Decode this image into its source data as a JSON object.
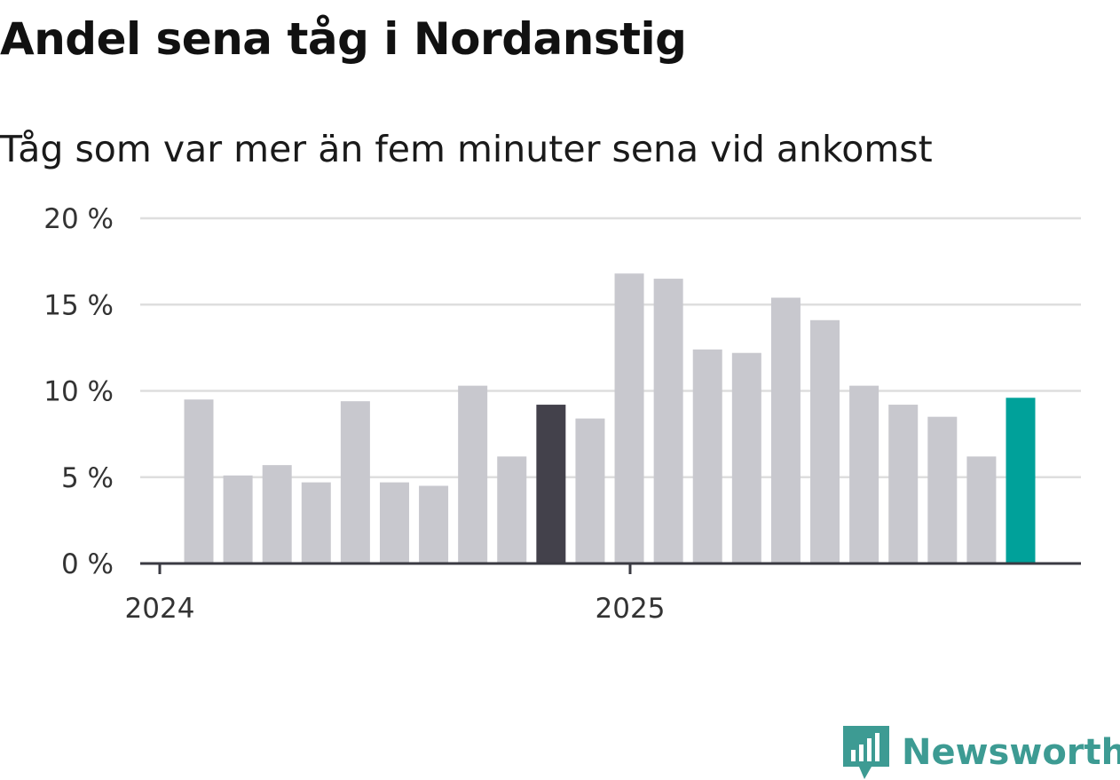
{
  "chart_data": {
    "type": "bar",
    "title": "Andel sena tåg i Nordanstig",
    "subtitle": "Tåg som var mer än fem minuter sena vid ankomst",
    "ylim": [
      0,
      20
    ],
    "yticks": [
      0,
      5,
      10,
      15,
      20
    ],
    "ytick_labels": [
      "0 %",
      "5 %",
      "10 %",
      "15 %",
      "20 %"
    ],
    "xtick_labels": [
      "2024",
      "2025"
    ],
    "grid": true,
    "values": [
      9.5,
      5.1,
      5.7,
      4.7,
      9.4,
      4.7,
      4.5,
      10.3,
      6.2,
      9.2,
      8.4,
      16.8,
      16.5,
      12.4,
      12.2,
      15.4,
      14.1,
      10.3,
      9.2,
      8.5,
      6.2,
      9.6
    ],
    "colors": {
      "default": "#c8c8ce",
      "highlight_dark": "#43414b",
      "highlight_latest": "#00a19a",
      "grid": "#dedede",
      "axis": "#3a3a42"
    },
    "highlights": {
      "9": "highlight_dark",
      "21": "highlight_latest"
    }
  },
  "logo": {
    "text": "Newsworthy",
    "icon": "newsworthy-logo-icon",
    "color": "#3d9b93"
  }
}
